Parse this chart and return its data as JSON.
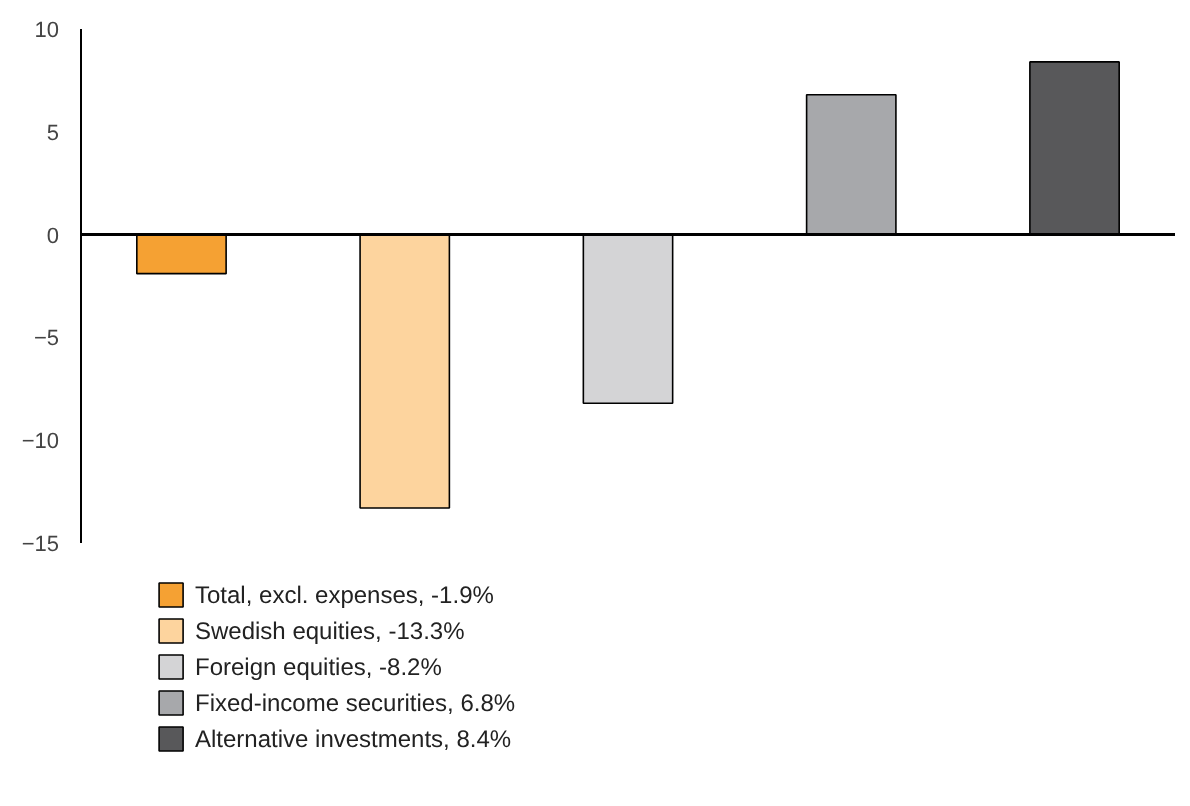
{
  "chart_data": {
    "type": "bar",
    "categories": [
      null,
      null,
      null,
      null,
      null
    ],
    "series": [
      {
        "name": "Total, excl. expenses, -1.9%",
        "color": "#f5a133",
        "values": [
          -1.9,
          null,
          null,
          null,
          null
        ]
      },
      {
        "name": "Swedish equities, -13.3%",
        "color": "#fdd49e",
        "values": [
          null,
          -13.3,
          null,
          null,
          null
        ]
      },
      {
        "name": "Foreign equities, -8.2%",
        "color": "#d4d4d6",
        "values": [
          null,
          null,
          -8.2,
          null,
          null
        ]
      },
      {
        "name": "Fixed-income securities, 6.8%",
        "color": "#a7a8ab",
        "values": [
          null,
          null,
          null,
          6.8,
          null
        ]
      },
      {
        "name": "Alternative investments, 8.4%",
        "color": "#58585a",
        "values": [
          null,
          null,
          null,
          null,
          8.4
        ]
      }
    ],
    "ylim": [
      -15,
      10
    ],
    "yticks": [
      -15,
      -10,
      -5,
      0,
      5,
      10
    ],
    "grid": false,
    "ref_lines": [
      {
        "axis": "y",
        "value": 0,
        "color": "#000000"
      }
    ],
    "legend": "bottom",
    "tick_labels": "y"
  }
}
